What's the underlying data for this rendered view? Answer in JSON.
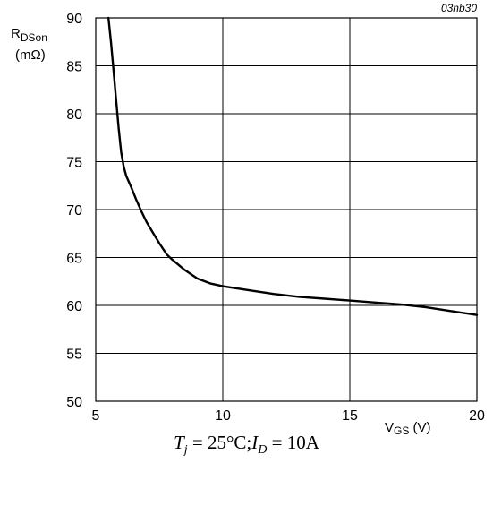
{
  "chart_data": {
    "type": "line",
    "figure_id": "03nb30",
    "xlim": [
      5,
      20
    ],
    "ylim": [
      50,
      90
    ],
    "x_ticks": [
      "5",
      "10",
      "15",
      "20"
    ],
    "y_ticks": [
      "50",
      "55",
      "60",
      "65",
      "70",
      "75",
      "80",
      "85",
      "90"
    ],
    "grid": true,
    "ylabel": {
      "main": "R",
      "sub": "DSon",
      "unit": "(mΩ)"
    },
    "xlabel": {
      "main": "V",
      "sub": "GS",
      "unit": " (V)"
    },
    "series": [
      {
        "x": [
          5.5,
          5.6,
          5.7,
          5.8,
          5.9,
          6.0,
          6.1,
          6.2,
          6.4,
          6.6,
          6.8,
          7.0,
          7.2,
          7.5,
          7.8,
          8.0,
          8.5,
          9.0,
          9.5,
          10.0,
          11.0,
          12.0,
          13.0,
          14.0,
          15.0,
          16.0,
          17.0,
          18.0,
          19.0,
          20.0
        ],
        "y": [
          90.0,
          87.5,
          84.5,
          81.5,
          78.5,
          76.0,
          74.5,
          73.5,
          72.3,
          71.0,
          69.8,
          68.7,
          67.8,
          66.5,
          65.3,
          64.8,
          63.7,
          62.8,
          62.3,
          62.0,
          61.6,
          61.2,
          60.9,
          60.7,
          60.5,
          60.3,
          60.1,
          59.8,
          59.4,
          59.0
        ]
      }
    ]
  },
  "condition": {
    "tj_symbol": "T",
    "tj_sub": "j",
    "tj_value": " = 25°C;",
    "id_symbol": "I",
    "id_sub": "D",
    "id_value": " = 10A"
  }
}
